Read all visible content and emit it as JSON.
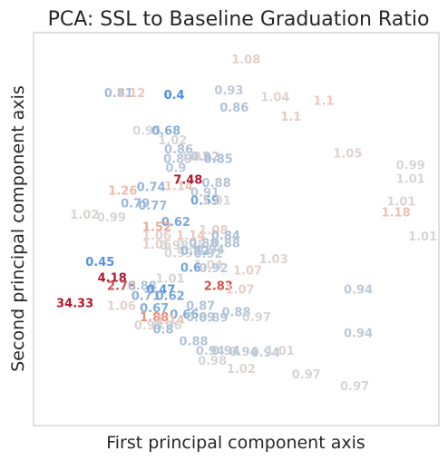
{
  "chart_data": {
    "type": "scatter",
    "title": "PCA: SSL to Baseline Graduation Ratio",
    "xlabel": "First principal component axis",
    "ylabel": "Second principal component axis",
    "xlim": [
      0,
      100
    ],
    "ylim": [
      0,
      100
    ],
    "grid": false,
    "legend": "none",
    "colors": {
      "low": "#4a8fe0",
      "neutral": "#d6d6d6",
      "high": "#b2182b",
      "mid_high": "#e8826a"
    },
    "points": [
      {
        "x": 52.4,
        "y": 92.9,
        "label": "1.08"
      },
      {
        "x": 21.0,
        "y": 84.4,
        "label": "0.81"
      },
      {
        "x": 24.0,
        "y": 84.4,
        "label": "1.12"
      },
      {
        "x": 34.7,
        "y": 83.9,
        "label": "0.4"
      },
      {
        "x": 48.2,
        "y": 85.1,
        "label": "0.93"
      },
      {
        "x": 59.6,
        "y": 83.4,
        "label": "1.04"
      },
      {
        "x": 71.6,
        "y": 82.5,
        "label": "1.1"
      },
      {
        "x": 49.5,
        "y": 80.7,
        "label": "0.86"
      },
      {
        "x": 63.5,
        "y": 78.4,
        "label": "1.1"
      },
      {
        "x": 28.0,
        "y": 74.8,
        "label": "0.95"
      },
      {
        "x": 32.7,
        "y": 74.8,
        "label": "0.68"
      },
      {
        "x": 34.3,
        "y": 72.4,
        "label": "1.02"
      },
      {
        "x": 35.8,
        "y": 70.1,
        "label": "0.86"
      },
      {
        "x": 35.6,
        "y": 67.7,
        "label": "0.89"
      },
      {
        "x": 39.8,
        "y": 68.2,
        "label": "1.03"
      },
      {
        "x": 42.3,
        "y": 68.2,
        "label": "0.92"
      },
      {
        "x": 45.6,
        "y": 67.7,
        "label": "0.85"
      },
      {
        "x": 77.5,
        "y": 69.1,
        "label": "1.05"
      },
      {
        "x": 35.1,
        "y": 65.4,
        "label": "0.9"
      },
      {
        "x": 93.0,
        "y": 66.1,
        "label": "0.99"
      },
      {
        "x": 93.0,
        "y": 62.6,
        "label": "1.01"
      },
      {
        "x": 35.8,
        "y": 60.7,
        "label": "1.14"
      },
      {
        "x": 45.1,
        "y": 61.5,
        "label": "0.88"
      },
      {
        "x": 38.1,
        "y": 62.4,
        "label": "7.48"
      },
      {
        "x": 22.0,
        "y": 59.6,
        "label": "1.26"
      },
      {
        "x": 29.0,
        "y": 60.5,
        "label": "0.74"
      },
      {
        "x": 42.3,
        "y": 59.1,
        "label": "0.91"
      },
      {
        "x": 42.3,
        "y": 57.0,
        "label": "0.59"
      },
      {
        "x": 45.1,
        "y": 57.0,
        "label": "1.01"
      },
      {
        "x": 25.1,
        "y": 56.3,
        "label": "0.79"
      },
      {
        "x": 29.4,
        "y": 55.8,
        "label": "0.77"
      },
      {
        "x": 90.7,
        "y": 56.8,
        "label": "1.01"
      },
      {
        "x": 12.6,
        "y": 53.5,
        "label": "1.02"
      },
      {
        "x": 19.2,
        "y": 52.8,
        "label": "0.99"
      },
      {
        "x": 89.4,
        "y": 54.0,
        "label": "1.18"
      },
      {
        "x": 35.1,
        "y": 51.6,
        "label": "0.62"
      },
      {
        "x": 30.4,
        "y": 50.4,
        "label": "1.52"
      },
      {
        "x": 30.4,
        "y": 48.1,
        "label": "1.06"
      },
      {
        "x": 38.8,
        "y": 48.1,
        "label": "1.14"
      },
      {
        "x": 44.4,
        "y": 49.5,
        "label": "1.08"
      },
      {
        "x": 47.4,
        "y": 48.1,
        "label": "0.84"
      },
      {
        "x": 47.4,
        "y": 46.2,
        "label": "0.88"
      },
      {
        "x": 30.4,
        "y": 45.8,
        "label": "1.06"
      },
      {
        "x": 34.7,
        "y": 45.6,
        "label": "0.98"
      },
      {
        "x": 38.8,
        "y": 45.8,
        "label": "0.95"
      },
      {
        "x": 41.9,
        "y": 46.2,
        "label": "0.88"
      },
      {
        "x": 43.6,
        "y": 44.6,
        "label": "0.94"
      },
      {
        "x": 35.8,
        "y": 43.7,
        "label": "0.99"
      },
      {
        "x": 39.8,
        "y": 44.2,
        "label": "0.82"
      },
      {
        "x": 43.1,
        "y": 43.5,
        "label": "0.92"
      },
      {
        "x": 16.4,
        "y": 41.4,
        "label": "0.45"
      },
      {
        "x": 59.2,
        "y": 42.1,
        "label": "1.03"
      },
      {
        "x": 43.1,
        "y": 40.7,
        "label": "1.04"
      },
      {
        "x": 38.8,
        "y": 40.0,
        "label": "0.6"
      },
      {
        "x": 44.4,
        "y": 39.8,
        "label": "0.92"
      },
      {
        "x": 52.8,
        "y": 39.3,
        "label": "1.07"
      },
      {
        "x": 19.4,
        "y": 37.4,
        "label": "4.18"
      },
      {
        "x": 33.7,
        "y": 37.2,
        "label": "1.01"
      },
      {
        "x": 96.0,
        "y": 47.9,
        "label": "1.01"
      },
      {
        "x": 21.7,
        "y": 35.3,
        "label": "2.78"
      },
      {
        "x": 26.8,
        "y": 35.3,
        "label": "0.88"
      },
      {
        "x": 31.4,
        "y": 34.4,
        "label": "0.47"
      },
      {
        "x": 45.6,
        "y": 35.3,
        "label": "2.83"
      },
      {
        "x": 50.9,
        "y": 34.4,
        "label": "1.07"
      },
      {
        "x": 80.1,
        "y": 34.4,
        "label": "0.94"
      },
      {
        "x": 27.7,
        "y": 32.8,
        "label": "0.71"
      },
      {
        "x": 33.7,
        "y": 32.8,
        "label": "0.62"
      },
      {
        "x": 10.2,
        "y": 30.9,
        "label": "34.33"
      },
      {
        "x": 21.7,
        "y": 30.2,
        "label": "1.06"
      },
      {
        "x": 29.8,
        "y": 29.7,
        "label": "0.67"
      },
      {
        "x": 41.2,
        "y": 30.2,
        "label": "0.87"
      },
      {
        "x": 37.2,
        "y": 28.1,
        "label": "0.66"
      },
      {
        "x": 41.2,
        "y": 27.4,
        "label": "0.89"
      },
      {
        "x": 44.4,
        "y": 27.2,
        "label": "0.89"
      },
      {
        "x": 50.0,
        "y": 28.6,
        "label": "0.88"
      },
      {
        "x": 55.0,
        "y": 27.4,
        "label": "0.97"
      },
      {
        "x": 29.8,
        "y": 27.4,
        "label": "1.88"
      },
      {
        "x": 33.7,
        "y": 26.7,
        "label": "1.14"
      },
      {
        "x": 28.4,
        "y": 25.3,
        "label": "0.95"
      },
      {
        "x": 33.0,
        "y": 25.3,
        "label": "0.96"
      },
      {
        "x": 32.0,
        "y": 24.2,
        "label": "0.8"
      },
      {
        "x": 80.1,
        "y": 23.3,
        "label": "0.94"
      },
      {
        "x": 39.5,
        "y": 21.2,
        "label": "0.88"
      },
      {
        "x": 43.6,
        "y": 18.8,
        "label": "0.94"
      },
      {
        "x": 47.4,
        "y": 18.8,
        "label": "0.94"
      },
      {
        "x": 51.8,
        "y": 18.6,
        "label": "0.94"
      },
      {
        "x": 57.2,
        "y": 18.4,
        "label": "0.94"
      },
      {
        "x": 60.8,
        "y": 18.8,
        "label": "1.01"
      },
      {
        "x": 44.1,
        "y": 16.3,
        "label": "0.98"
      },
      {
        "x": 51.2,
        "y": 14.2,
        "label": "1.02"
      },
      {
        "x": 67.3,
        "y": 12.8,
        "label": "0.97"
      },
      {
        "x": 79.2,
        "y": 9.8,
        "label": "0.97"
      }
    ]
  }
}
